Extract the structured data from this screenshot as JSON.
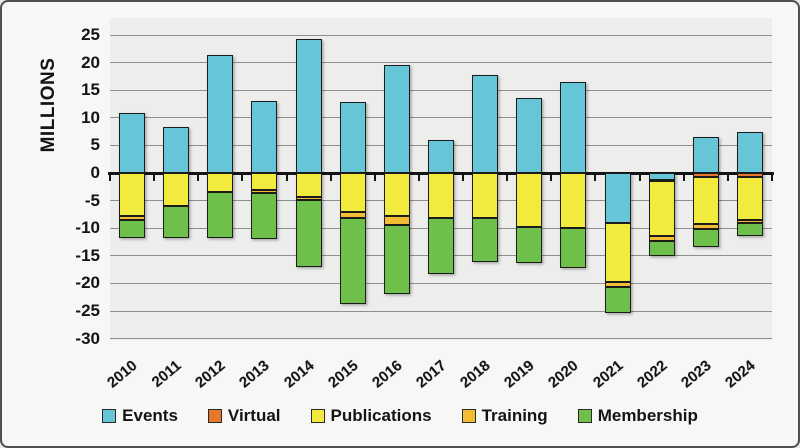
{
  "chart_data": {
    "type": "bar",
    "stacked": true,
    "title": "",
    "ylabel": "MILLIONS",
    "xlabel": "",
    "ylim": [
      -30,
      25
    ],
    "ytick_step": 5,
    "grid": "horizontal",
    "legend_position": "bottom",
    "plot_bg_color": "#EDEDEC",
    "grid_color": "#8F8F8F",
    "zero_line_color": "#141414",
    "bar_border_color": "#1C1C1C",
    "categories": [
      "2010",
      "2011",
      "2012",
      "2013",
      "2014",
      "2015",
      "2016",
      "2017",
      "2018",
      "2019",
      "2020",
      "2021",
      "2022",
      "2023",
      "2024"
    ],
    "series": [
      {
        "name": "Events",
        "color": "#66C6D7",
        "values": [
          10.9,
          8.3,
          21.3,
          13.0,
          24.2,
          12.9,
          19.5,
          6.0,
          17.7,
          13.6,
          16.4,
          -9.0,
          -1.3,
          6.6,
          7.4
        ]
      },
      {
        "name": "Virtual",
        "color": "#E8772E",
        "values": [
          0,
          0,
          0,
          0,
          0,
          0,
          0,
          0,
          0,
          0,
          0,
          0,
          -0.2,
          -0.7,
          -0.7
        ]
      },
      {
        "name": "Publications",
        "color": "#F2EA3C",
        "values": [
          -7.8,
          -5.9,
          -3.5,
          -3.1,
          -4.3,
          -7.0,
          -7.8,
          -8.1,
          -8.1,
          -9.8,
          -10.0,
          -10.7,
          -10.0,
          -8.6,
          -7.8
        ]
      },
      {
        "name": "Training",
        "color": "#F2BD33",
        "values": [
          -0.8,
          0,
          0,
          -0.6,
          -0.6,
          -1.2,
          -1.7,
          0,
          0,
          0,
          0,
          -0.9,
          -0.8,
          -0.8,
          -0.6
        ]
      },
      {
        "name": "Membership",
        "color": "#6FBF4B",
        "values": [
          -3.1,
          -5.8,
          -8.2,
          -8.3,
          -12.1,
          -15.6,
          -12.5,
          -10.2,
          -8.0,
          -6.5,
          -7.2,
          -4.8,
          -2.8,
          -3.3,
          -2.4
        ]
      }
    ],
    "ytick_labels": [
      "25",
      "20",
      "15",
      "10",
      "5",
      "0",
      "-5",
      "-10",
      "-15",
      "-20",
      "-25",
      "-30"
    ]
  }
}
